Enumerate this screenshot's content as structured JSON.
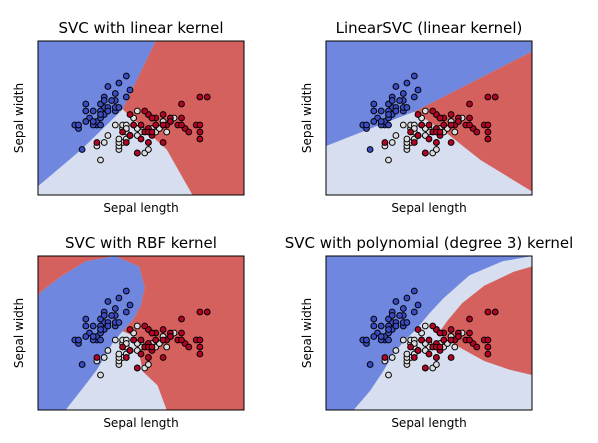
{
  "colors": {
    "blue_region": "#6f87de",
    "white_region": "#d6def0",
    "red_region": "#d4615d",
    "point_blue": "#3b4cc0",
    "point_white": "#dddddd",
    "point_red": "#b40426",
    "edge": "#000000"
  },
  "chart_data": [
    {
      "type": "scatter",
      "title": "SVC with linear kernel",
      "xlabel": "Sepal length",
      "ylabel": "Sepal width",
      "xlim": [
        3.3,
        8.9
      ],
      "ylim": [
        1.0,
        5.4
      ],
      "grid": false,
      "ticks": "none",
      "decision_regions": {
        "blue": [
          [
            3.3,
            1.25
          ],
          [
            4.48,
            2.3
          ],
          [
            5.36,
            3.2
          ],
          [
            5.6,
            3.45
          ],
          [
            6.5,
            5.4
          ],
          [
            3.3,
            5.4
          ]
        ],
        "red": [
          [
            5.6,
            3.45
          ],
          [
            6.8,
            2.3
          ],
          [
            7.5,
            1.0
          ],
          [
            8.9,
            1.0
          ],
          [
            8.9,
            5.4
          ],
          [
            6.5,
            5.4
          ]
        ]
      },
      "series": [
        {
          "class": 0,
          "color": "blue",
          "points": [
            [
              5.1,
              3.5
            ],
            [
              4.9,
              3.0
            ],
            [
              4.7,
              3.2
            ],
            [
              4.6,
              3.1
            ],
            [
              5.0,
              3.6
            ],
            [
              5.4,
              3.9
            ],
            [
              4.6,
              3.4
            ],
            [
              5.0,
              3.4
            ],
            [
              4.4,
              2.9
            ],
            [
              4.9,
              3.1
            ],
            [
              5.4,
              3.7
            ],
            [
              4.8,
              3.4
            ],
            [
              4.8,
              3.0
            ],
            [
              4.3,
              3.0
            ],
            [
              5.8,
              4.0
            ],
            [
              5.7,
              4.4
            ],
            [
              5.1,
              3.8
            ],
            [
              5.7,
              3.8
            ],
            [
              5.4,
              3.4
            ],
            [
              5.1,
              3.7
            ],
            [
              4.6,
              3.6
            ],
            [
              5.1,
              3.3
            ],
            [
              4.8,
              3.1
            ],
            [
              5.0,
              3.0
            ],
            [
              5.2,
              3.5
            ],
            [
              5.2,
              3.4
            ],
            [
              5.4,
              3.5
            ],
            [
              5.5,
              4.2
            ],
            [
              5.2,
              4.1
            ],
            [
              5.0,
              3.2
            ],
            [
              5.5,
              3.5
            ],
            [
              4.4,
              3.0
            ],
            [
              4.5,
              2.3
            ],
            [
              5.3,
              3.7
            ],
            [
              5.0,
              3.3
            ]
          ]
        },
        {
          "class": 1,
          "color": "white",
          "points": [
            [
              7.0,
              3.2
            ],
            [
              6.4,
              3.2
            ],
            [
              5.5,
              2.3
            ],
            [
              6.5,
              2.8
            ],
            [
              5.7,
              2.8
            ],
            [
              6.3,
              3.3
            ],
            [
              4.9,
              2.4
            ],
            [
              6.6,
              2.9
            ],
            [
              5.2,
              2.7
            ],
            [
              5.0,
              2.0
            ],
            [
              5.9,
              3.0
            ],
            [
              6.0,
              2.2
            ],
            [
              6.1,
              2.9
            ],
            [
              5.6,
              2.9
            ],
            [
              6.7,
              3.1
            ],
            [
              5.6,
              3.0
            ],
            [
              5.8,
              2.7
            ],
            [
              6.2,
              2.2
            ],
            [
              5.6,
              2.5
            ],
            [
              5.9,
              3.2
            ],
            [
              6.1,
              2.8
            ],
            [
              6.3,
              2.5
            ],
            [
              6.4,
              2.9
            ],
            [
              6.8,
              2.8
            ],
            [
              6.7,
              3.0
            ],
            [
              6.0,
              2.9
            ],
            [
              5.7,
              2.6
            ],
            [
              5.5,
              2.4
            ],
            [
              5.8,
              2.7
            ],
            [
              6.0,
              2.7
            ],
            [
              5.4,
              3.0
            ],
            [
              6.0,
              3.4
            ],
            [
              6.7,
              3.1
            ],
            [
              6.3,
              2.3
            ],
            [
              5.5,
              2.5
            ],
            [
              5.5,
              2.6
            ],
            [
              5.1,
              2.5
            ],
            [
              5.7,
              3.0
            ],
            [
              5.7,
              2.9
            ]
          ]
        },
        {
          "class": 2,
          "color": "red",
          "points": [
            [
              6.3,
              3.3
            ],
            [
              5.8,
              2.7
            ],
            [
              7.1,
              3.0
            ],
            [
              6.3,
              2.9
            ],
            [
              6.5,
              3.0
            ],
            [
              7.6,
              3.0
            ],
            [
              7.3,
              2.9
            ],
            [
              6.7,
              2.5
            ],
            [
              7.2,
              3.6
            ],
            [
              6.5,
              3.2
            ],
            [
              6.4,
              2.7
            ],
            [
              6.8,
              3.0
            ],
            [
              5.7,
              2.5
            ],
            [
              6.4,
              3.2
            ],
            [
              7.7,
              3.8
            ],
            [
              7.7,
              2.6
            ],
            [
              6.0,
              2.2
            ],
            [
              6.9,
              3.2
            ],
            [
              5.6,
              2.8
            ],
            [
              7.7,
              2.8
            ],
            [
              6.7,
              3.3
            ],
            [
              7.2,
              3.2
            ],
            [
              6.2,
              2.8
            ],
            [
              6.1,
              3.0
            ],
            [
              7.2,
              3.0
            ],
            [
              7.4,
              2.8
            ],
            [
              7.9,
              3.8
            ],
            [
              6.3,
              2.8
            ],
            [
              6.1,
              2.6
            ],
            [
              6.4,
              2.8
            ],
            [
              6.9,
              3.1
            ],
            [
              5.8,
              2.7
            ],
            [
              6.7,
              3.0
            ],
            [
              6.3,
              2.5
            ],
            [
              5.9,
              3.0
            ],
            [
              6.2,
              3.4
            ],
            [
              7.7,
              3.0
            ],
            [
              6.9,
              3.1
            ],
            [
              5.8,
              3.3
            ],
            [
              4.9,
              2.5
            ]
          ]
        }
      ]
    },
    {
      "type": "scatter",
      "title": "LinearSVC (linear kernel)",
      "xlabel": "Sepal length",
      "ylabel": "Sepal width",
      "xlim": [
        3.3,
        8.9
      ],
      "ylim": [
        1.0,
        5.4
      ],
      "grid": false,
      "ticks": "none",
      "decision_regions": {
        "blue": [
          [
            3.3,
            2.4
          ],
          [
            5.0,
            3.1
          ],
          [
            5.7,
            3.38
          ],
          [
            8.9,
            5.1
          ],
          [
            8.9,
            5.4
          ],
          [
            3.3,
            5.4
          ]
        ],
        "red": [
          [
            5.7,
            3.38
          ],
          [
            6.6,
            2.75
          ],
          [
            7.5,
            2.0
          ],
          [
            8.9,
            1.1
          ],
          [
            8.9,
            5.1
          ]
        ]
      },
      "series": "same_as_panel_1"
    },
    {
      "type": "scatter",
      "title": "SVC with RBF kernel",
      "xlabel": "Sepal length",
      "ylabel": "Sepal width",
      "xlim": [
        3.3,
        8.9
      ],
      "ylim": [
        1.0,
        5.4
      ],
      "grid": false,
      "ticks": "none",
      "decision_regions": {
        "blue": [
          [
            4.05,
            1.0
          ],
          [
            4.5,
            1.6
          ],
          [
            4.9,
            2.15
          ],
          [
            5.1,
            2.5
          ],
          [
            5.35,
            2.95
          ],
          [
            5.6,
            3.25
          ],
          [
            5.9,
            3.6
          ],
          [
            6.1,
            4.0
          ],
          [
            6.2,
            4.5
          ],
          [
            6.05,
            5.1
          ],
          [
            5.4,
            5.4
          ],
          [
            4.6,
            5.25
          ],
          [
            3.9,
            4.8
          ],
          [
            3.35,
            4.35
          ],
          [
            3.3,
            4.2
          ],
          [
            3.3,
            1.0
          ]
        ],
        "red": [
          [
            6.05,
            5.1
          ],
          [
            6.2,
            4.5
          ],
          [
            6.1,
            4.0
          ],
          [
            5.9,
            3.6
          ],
          [
            5.6,
            3.25
          ],
          [
            5.95,
            3.1
          ],
          [
            6.05,
            2.6
          ],
          [
            6.15,
            2.1
          ],
          [
            6.55,
            1.7
          ],
          [
            6.8,
            1.0
          ],
          [
            8.9,
            1.0
          ],
          [
            8.9,
            5.4
          ],
          [
            5.4,
            5.4
          ]
        ],
        "red_corner": [
          [
            3.3,
            4.2
          ],
          [
            3.35,
            4.35
          ],
          [
            3.9,
            4.8
          ],
          [
            4.6,
            5.25
          ],
          [
            5.4,
            5.4
          ],
          [
            3.3,
            5.4
          ]
        ]
      },
      "series": "same_as_panel_1"
    },
    {
      "type": "scatter",
      "title": "SVC with polynomial (degree 3) kernel",
      "xlabel": "Sepal length",
      "ylabel": "Sepal width",
      "xlim": [
        3.3,
        8.9
      ],
      "ylim": [
        1.0,
        5.4
      ],
      "grid": false,
      "ticks": "none",
      "decision_regions": {
        "blue": [
          [
            3.3,
            1.0
          ],
          [
            4.05,
            1.0
          ],
          [
            4.5,
            1.55
          ],
          [
            4.85,
            2.1
          ],
          [
            5.1,
            2.55
          ],
          [
            5.4,
            2.95
          ],
          [
            5.75,
            3.3
          ],
          [
            6.1,
            3.75
          ],
          [
            6.5,
            4.2
          ],
          [
            7.2,
            4.85
          ],
          [
            8.1,
            5.25
          ],
          [
            8.9,
            5.4
          ],
          [
            3.3,
            5.4
          ]
        ],
        "red": [
          [
            6.4,
            3.25
          ],
          [
            6.6,
            3.55
          ],
          [
            7.0,
            4.05
          ],
          [
            7.6,
            4.55
          ],
          [
            8.4,
            4.95
          ],
          [
            8.9,
            5.1
          ],
          [
            8.9,
            2.0
          ],
          [
            8.3,
            2.15
          ],
          [
            7.6,
            2.4
          ],
          [
            7.0,
            2.75
          ],
          [
            6.6,
            3.0
          ]
        ]
      },
      "series": "same_as_panel_1"
    }
  ]
}
